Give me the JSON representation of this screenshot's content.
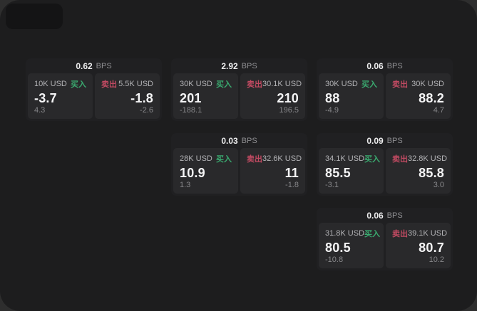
{
  "colors": {
    "backdrop": "#2e2e2e",
    "surface": "#1d1d1e",
    "tile": "#141415",
    "card": "#202022",
    "panel": "#29292b",
    "buy_green": "#3aa96f",
    "sell_red": "#c14a62"
  },
  "labels": {
    "bps_unit": "BPS",
    "buy": "买入",
    "sell": "卖出"
  },
  "cards": [
    {
      "bps": "0.62",
      "grid": {
        "row": 0,
        "col": 0
      },
      "buy": {
        "notional": "10K USD",
        "value": "-3.7",
        "change": "4.3"
      },
      "sell": {
        "notional": "5.5K USD",
        "value": "-1.8",
        "change": "-2.6"
      }
    },
    {
      "bps": "2.92",
      "grid": {
        "row": 0,
        "col": 1
      },
      "buy": {
        "notional": "30K USD",
        "value": "201",
        "change": "-188.1"
      },
      "sell": {
        "notional": "30.1K USD",
        "value": "210",
        "change": "196.5"
      }
    },
    {
      "bps": "0.06",
      "grid": {
        "row": 0,
        "col": 2
      },
      "buy": {
        "notional": "30K USD",
        "value": "88",
        "change": "-4.9"
      },
      "sell": {
        "notional": "30K USD",
        "value": "88.2",
        "change": "4.7"
      }
    },
    {
      "bps": "0.03",
      "grid": {
        "row": 1,
        "col": 1
      },
      "buy": {
        "notional": "28K USD",
        "value": "10.9",
        "change": "1.3"
      },
      "sell": {
        "notional": "32.6K USD",
        "value": "11",
        "change": "-1.8"
      }
    },
    {
      "bps": "0.09",
      "grid": {
        "row": 1,
        "col": 2
      },
      "buy": {
        "notional": "34.1K USD",
        "value": "85.5",
        "change": "-3.1"
      },
      "sell": {
        "notional": "32.8K USD",
        "value": "85.8",
        "change": "3.0"
      }
    },
    {
      "bps": "0.06",
      "grid": {
        "row": 2,
        "col": 2
      },
      "buy": {
        "notional": "31.8K USD",
        "value": "80.5",
        "change": "-10.8"
      },
      "sell": {
        "notional": "39.1K USD",
        "value": "80.7",
        "change": "10.2"
      }
    }
  ]
}
